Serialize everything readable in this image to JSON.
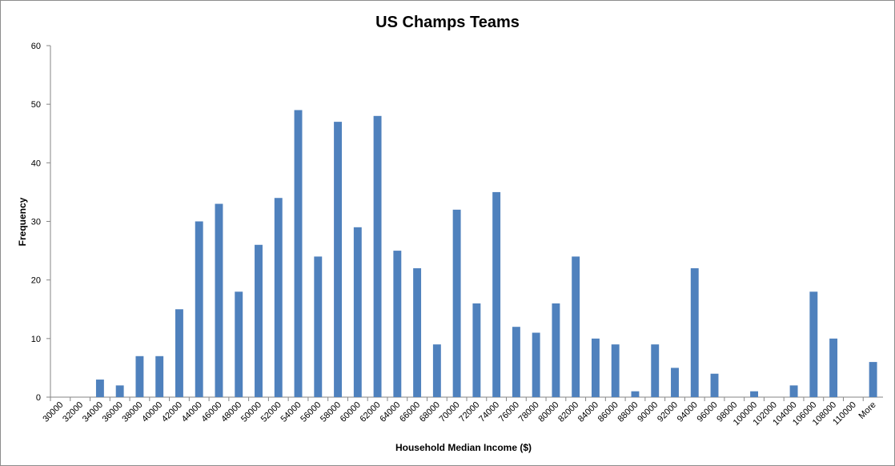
{
  "chart_data": {
    "type": "bar",
    "title": "US Champs Teams",
    "xlabel": "Household Median Income ($)",
    "ylabel": "Frequency",
    "ylim": [
      0,
      60
    ],
    "yticks": [
      0,
      10,
      20,
      30,
      40,
      50,
      60
    ],
    "grid": false,
    "legend": "none",
    "bar_color": "#4f81bd",
    "categories": [
      "30000",
      "32000",
      "34000",
      "36000",
      "38000",
      "40000",
      "42000",
      "44000",
      "46000",
      "48000",
      "50000",
      "52000",
      "54000",
      "56000",
      "58000",
      "60000",
      "62000",
      "64000",
      "66000",
      "68000",
      "70000",
      "72000",
      "74000",
      "76000",
      "78000",
      "80000",
      "82000",
      "84000",
      "86000",
      "88000",
      "90000",
      "92000",
      "94000",
      "96000",
      "98000",
      "100000",
      "102000",
      "104000",
      "106000",
      "108000",
      "110000",
      "More"
    ],
    "values": [
      0,
      0,
      3,
      2,
      7,
      7,
      15,
      30,
      33,
      18,
      26,
      34,
      49,
      24,
      47,
      29,
      48,
      25,
      22,
      9,
      32,
      16,
      35,
      12,
      11,
      16,
      24,
      10,
      9,
      1,
      9,
      5,
      22,
      4,
      0,
      1,
      0,
      2,
      18,
      10,
      0,
      6
    ]
  }
}
